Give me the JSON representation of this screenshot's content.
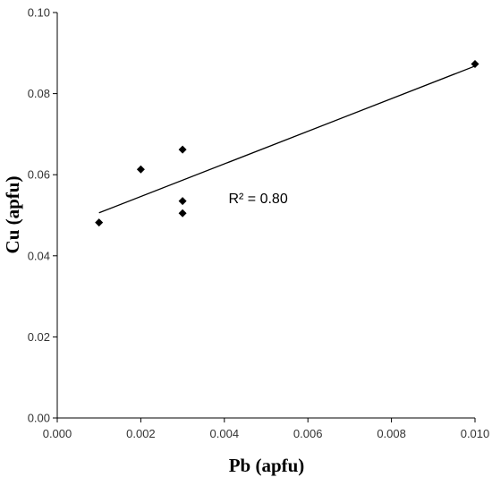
{
  "chart_data": {
    "type": "scatter",
    "title": "",
    "xlabel": "Pb (apfu)",
    "ylabel": "Cu (apfu)",
    "xlim": [
      0.0,
      0.01
    ],
    "ylim": [
      0.0,
      0.1
    ],
    "xticks": [
      "0.000",
      "0.002",
      "0.004",
      "0.006",
      "0.008",
      "0.010"
    ],
    "yticks": [
      "0.00",
      "0.02",
      "0.04",
      "0.06",
      "0.08",
      "0.10"
    ],
    "grid": false,
    "legend": "none",
    "marker": "diamond",
    "series": [
      {
        "x": [
          0.001,
          0.002,
          0.003,
          0.003,
          0.003,
          0.01
        ],
        "y": [
          0.0482,
          0.0613,
          0.0662,
          0.0535,
          0.0505,
          0.0873
        ]
      }
    ],
    "trendline": {
      "x": [
        0.001,
        0.01
      ],
      "y": [
        0.0506,
        0.0868
      ]
    },
    "annotations": [
      {
        "text": "R² = 0.80",
        "x": 0.0041,
        "y": 0.0523
      }
    ],
    "colors": {
      "marker": "#000000",
      "trendline": "#000000",
      "axis": "#000000",
      "tick_label": "#333333"
    }
  }
}
